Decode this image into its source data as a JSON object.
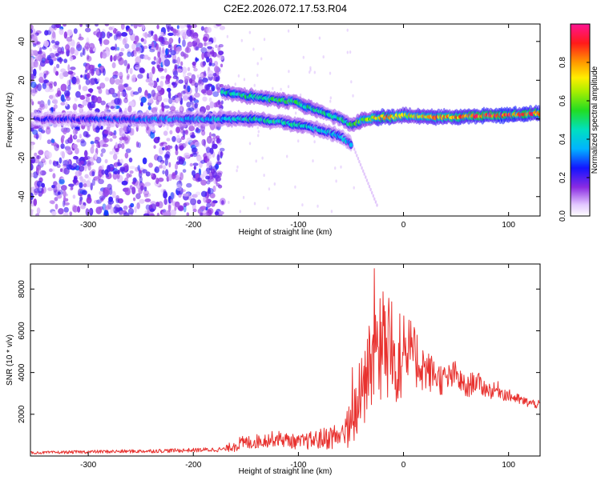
{
  "title": "C2E2.2026.072.17.53.R04",
  "chart_data": [
    {
      "type": "heatmap",
      "xlabel": "Height of straight line (km)",
      "ylabel": "Frequency (Hz)",
      "xlim": [
        -355,
        130
      ],
      "ylim": [
        -50,
        49
      ],
      "xticks": [
        -300,
        -200,
        -100,
        0,
        100
      ],
      "yticks": [
        -40,
        -20,
        0,
        20,
        40
      ],
      "colorbar": {
        "label": "Normalized spectral amplitude",
        "range": [
          0,
          1
        ],
        "ticks": [
          "0.0",
          "0.2",
          "0.4",
          "0.6",
          "0.8"
        ],
        "tick_values": [
          0.0,
          0.2,
          0.4,
          0.6,
          0.8
        ]
      },
      "ridges": [
        {
          "x": [
            -350,
            -300,
            -250,
            -200,
            -175
          ],
          "y": [
            0,
            0,
            0,
            0,
            0
          ],
          "amp": [
            0.22,
            0.25,
            0.3,
            0.35,
            0.38
          ]
        },
        {
          "x": [
            -175,
            -150,
            -125,
            -100,
            -85,
            -70,
            -60,
            -50
          ],
          "y": [
            0,
            0,
            -1,
            -3,
            -5,
            -7,
            -9,
            -13
          ],
          "amp": [
            0.4,
            0.45,
            0.45,
            0.45,
            0.42,
            0.4,
            0.38,
            0.35
          ]
        },
        {
          "x": [
            -172,
            -150,
            -125,
            -105,
            -90,
            -75,
            -60,
            -50
          ],
          "y": [
            14,
            12,
            10,
            9,
            6,
            3,
            0,
            -3
          ],
          "amp": [
            0.45,
            0.5,
            0.5,
            0.5,
            0.48,
            0.45,
            0.45,
            0.45
          ]
        },
        {
          "x": [
            -50,
            -35,
            -20,
            -10,
            0,
            20,
            50,
            80,
            100,
            130
          ],
          "y": [
            -3,
            0,
            1,
            1,
            2,
            1,
            1,
            2,
            2,
            3
          ],
          "amp": [
            0.5,
            0.6,
            0.85,
            0.8,
            0.7,
            0.75,
            0.8,
            0.9,
            0.92,
            0.85
          ]
        }
      ]
    },
    {
      "type": "line",
      "xlabel": "Height of straight line (km)",
      "ylabel": "SNR (10 * v/v)",
      "xlim": [
        -355,
        130
      ],
      "ylim": [
        0,
        9200
      ],
      "xticks": [
        -300,
        -200,
        -100,
        0,
        100
      ],
      "yticks": [
        2000,
        4000,
        6000,
        8000
      ],
      "color": "#e8312e",
      "x": [
        -355,
        -300,
        -250,
        -200,
        -170,
        -160,
        -140,
        -120,
        -100,
        -80,
        -60,
        -50,
        -45,
        -40,
        -35,
        -30,
        -25,
        -22,
        -20,
        -15,
        -12,
        -10,
        -5,
        0,
        5,
        10,
        15,
        20,
        25,
        30,
        35,
        40,
        45,
        50,
        55,
        60,
        65,
        70,
        75,
        80,
        85,
        90,
        95,
        100,
        105,
        110,
        115,
        120,
        125,
        130
      ],
      "y": [
        150,
        200,
        230,
        280,
        320,
        550,
        700,
        850,
        650,
        800,
        1000,
        1400,
        2200,
        3000,
        3800,
        4500,
        5000,
        5300,
        5200,
        5000,
        5100,
        4500,
        4800,
        4600,
        5000,
        4800,
        4500,
        4200,
        4000,
        3900,
        3700,
        3600,
        3800,
        3900,
        3500,
        3200,
        3500,
        3600,
        3300,
        3200,
        3100,
        3200,
        3000,
        2900,
        2800,
        2700,
        2600,
        2550,
        2500,
        2450
      ],
      "spread": [
        60,
        80,
        90,
        100,
        120,
        350,
        350,
        380,
        350,
        500,
        700,
        1200,
        1600,
        2000,
        2400,
        2800,
        3000,
        3200,
        3200,
        2900,
        2800,
        2600,
        2200,
        1900,
        1800,
        1600,
        1400,
        1100,
        1000,
        800,
        800,
        750,
        700,
        700,
        600,
        550,
        550,
        500,
        450,
        400,
        400,
        380,
        350,
        300,
        280,
        260,
        250,
        230,
        220,
        200
      ]
    }
  ]
}
